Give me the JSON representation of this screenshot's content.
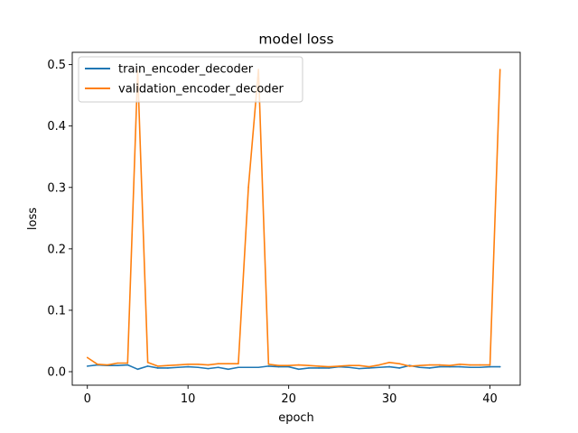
{
  "chart_data": {
    "type": "line",
    "title": "model loss",
    "xlabel": "epoch",
    "ylabel": "loss",
    "xlim": [
      -1.5,
      43
    ],
    "ylim": [
      -0.022,
      0.52
    ],
    "xticks": [
      0,
      10,
      20,
      30,
      40
    ],
    "yticks": [
      0.0,
      0.1,
      0.2,
      0.3,
      0.4,
      0.5
    ],
    "ytick_labels": [
      "0.0",
      "0.1",
      "0.2",
      "0.3",
      "0.4",
      "0.5"
    ],
    "grid": false,
    "legend_position": "upper-left",
    "x": [
      0,
      1,
      2,
      3,
      4,
      5,
      6,
      7,
      8,
      9,
      10,
      11,
      12,
      13,
      14,
      15,
      16,
      17,
      18,
      19,
      20,
      21,
      22,
      23,
      24,
      25,
      26,
      27,
      28,
      29,
      30,
      31,
      32,
      33,
      34,
      35,
      36,
      37,
      38,
      39,
      40,
      41
    ],
    "series": [
      {
        "name": "train_encoder_decoder",
        "color": "#1f77b4",
        "values": [
          0.009,
          0.011,
          0.01,
          0.01,
          0.011,
          0.004,
          0.009,
          0.006,
          0.006,
          0.007,
          0.008,
          0.007,
          0.005,
          0.007,
          0.004,
          0.007,
          0.007,
          0.007,
          0.009,
          0.008,
          0.008,
          0.004,
          0.006,
          0.006,
          0.006,
          0.008,
          0.007,
          0.005,
          0.006,
          0.007,
          0.008,
          0.006,
          0.01,
          0.007,
          0.006,
          0.008,
          0.008,
          0.008,
          0.007,
          0.007,
          0.008,
          0.008
        ]
      },
      {
        "name": "validation_encoder_decoder",
        "color": "#ff7f0e",
        "values": [
          0.023,
          0.012,
          0.011,
          0.014,
          0.014,
          0.49,
          0.015,
          0.009,
          0.01,
          0.011,
          0.012,
          0.012,
          0.011,
          0.013,
          0.013,
          0.013,
          0.3,
          0.492,
          0.012,
          0.01,
          0.01,
          0.011,
          0.01,
          0.009,
          0.008,
          0.009,
          0.01,
          0.01,
          0.008,
          0.011,
          0.015,
          0.013,
          0.009,
          0.01,
          0.011,
          0.011,
          0.01,
          0.012,
          0.011,
          0.011,
          0.011,
          0.492
        ]
      }
    ]
  }
}
